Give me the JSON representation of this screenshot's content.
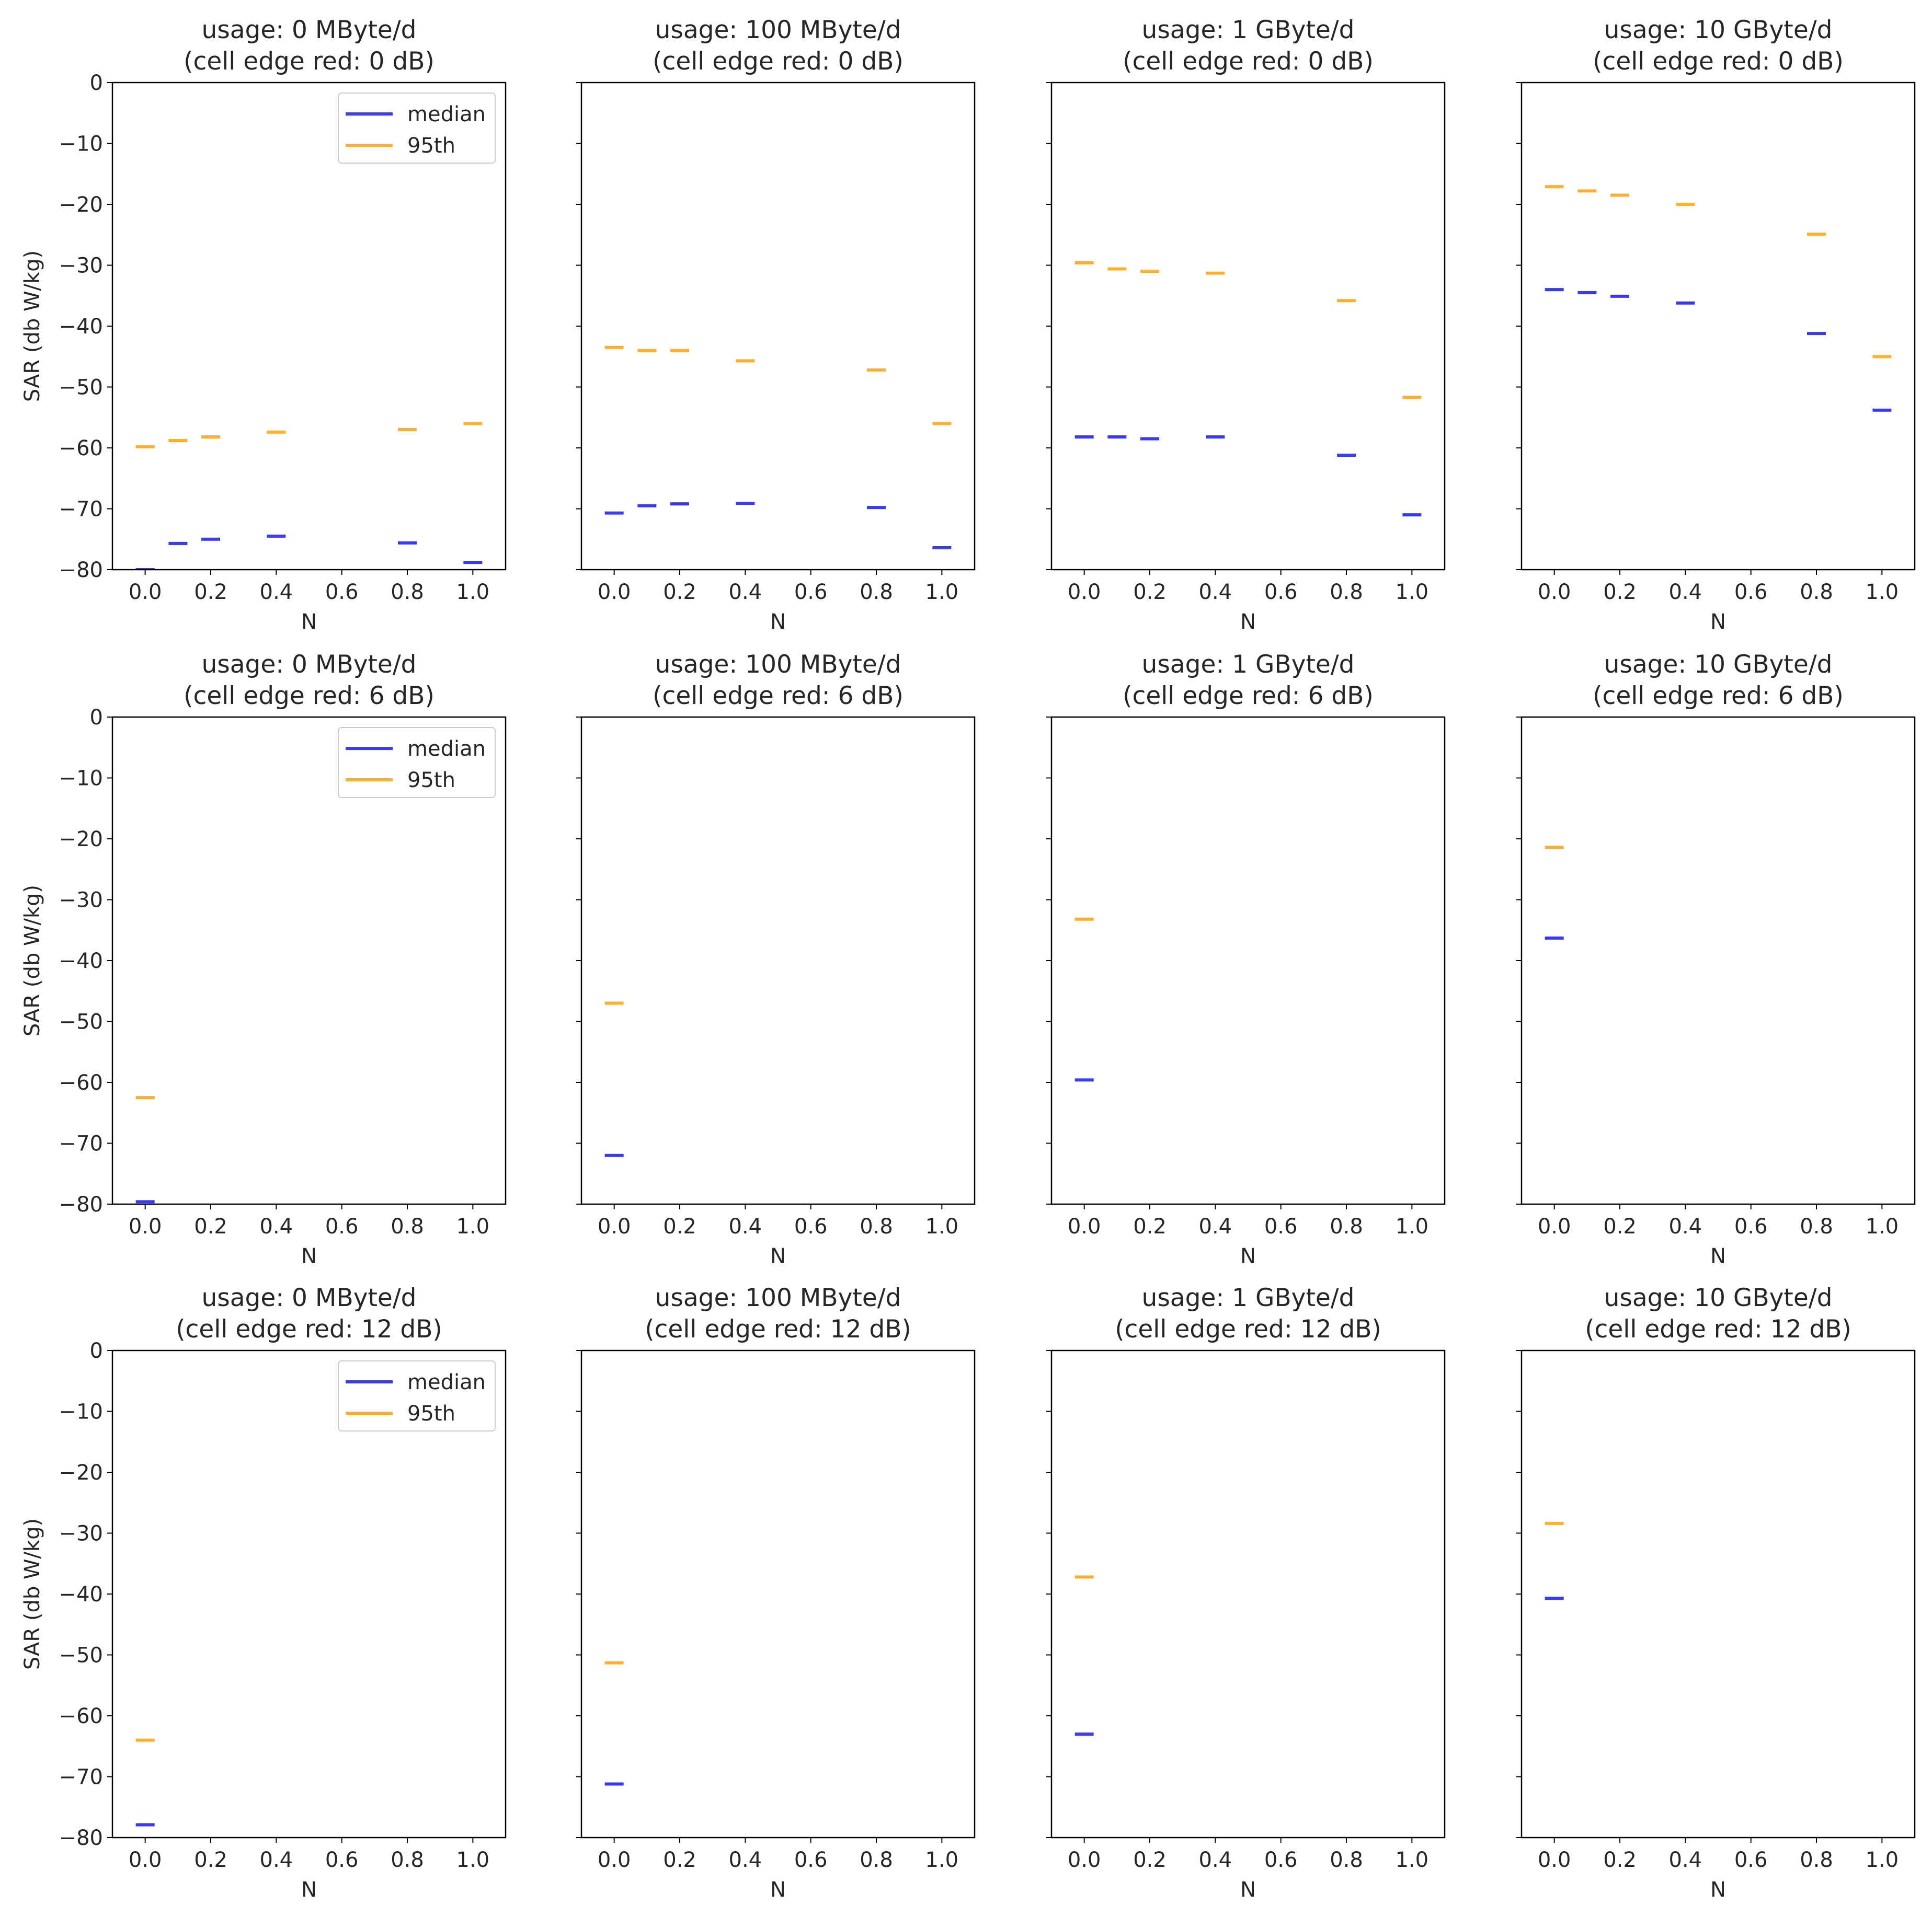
{
  "figure": {
    "background": "#ffffff"
  },
  "colors": {
    "median": "#3a3af5",
    "p95": "#ffb030",
    "axis": "#000000"
  },
  "chart_data": [
    {
      "type": "scatter",
      "title_line1": "usage: 0 MByte/d",
      "title_line2": "(cell edge red: 0 dB)",
      "xlabel": "N",
      "ylabel": "SAR (db W/kg)",
      "xlim": [
        -0.1,
        1.1
      ],
      "ylim": [
        -80,
        0
      ],
      "xticks": [
        "0.0",
        "0.2",
        "0.4",
        "0.6",
        "0.8",
        "1.0"
      ],
      "yticks": [
        "0",
        "−10",
        "−20",
        "−30",
        "−40",
        "−50",
        "−60",
        "−70",
        "−80"
      ],
      "legend": {
        "location": "upper right",
        "entries": [
          "median",
          "95th"
        ]
      },
      "series": [
        {
          "name": "median",
          "x": [
            0.0,
            0.1,
            0.2,
            0.4,
            0.8,
            1.0
          ],
          "y": [
            -80.0,
            -75.7,
            -75.0,
            -74.5,
            -75.6,
            -78.8
          ]
        },
        {
          "name": "95th",
          "x": [
            0.0,
            0.1,
            0.2,
            0.4,
            0.8,
            1.0
          ],
          "y": [
            -59.8,
            -58.8,
            -58.2,
            -57.4,
            -57.0,
            -56.0
          ]
        }
      ]
    },
    {
      "type": "scatter",
      "title_line1": "usage: 100 MByte/d",
      "title_line2": "(cell edge red: 0 dB)",
      "xlabel": "N",
      "ylabel": "",
      "xlim": [
        -0.1,
        1.1
      ],
      "ylim": [
        -80,
        0
      ],
      "xticks": [
        "0.0",
        "0.2",
        "0.4",
        "0.6",
        "0.8",
        "1.0"
      ],
      "yticks": [],
      "legend": null,
      "series": [
        {
          "name": "median",
          "x": [
            0.0,
            0.1,
            0.2,
            0.4,
            0.8,
            1.0
          ],
          "y": [
            -70.7,
            -69.5,
            -69.2,
            -69.1,
            -69.8,
            -76.4
          ]
        },
        {
          "name": "95th",
          "x": [
            0.0,
            0.1,
            0.2,
            0.4,
            0.8,
            1.0
          ],
          "y": [
            -43.5,
            -44.0,
            -44.0,
            -45.7,
            -47.2,
            -56.0
          ]
        }
      ]
    },
    {
      "type": "scatter",
      "title_line1": "usage: 1 GByte/d",
      "title_line2": "(cell edge red: 0 dB)",
      "xlabel": "N",
      "ylabel": "",
      "xlim": [
        -0.1,
        1.1
      ],
      "ylim": [
        -80,
        0
      ],
      "xticks": [
        "0.0",
        "0.2",
        "0.4",
        "0.6",
        "0.8",
        "1.0"
      ],
      "yticks": [],
      "legend": null,
      "series": [
        {
          "name": "median",
          "x": [
            0.0,
            0.1,
            0.2,
            0.4,
            0.8,
            1.0
          ],
          "y": [
            -58.2,
            -58.2,
            -58.5,
            -58.2,
            -61.2,
            -71.0
          ]
        },
        {
          "name": "95th",
          "x": [
            0.0,
            0.1,
            0.2,
            0.4,
            0.8,
            1.0
          ],
          "y": [
            -29.6,
            -30.6,
            -31.0,
            -31.3,
            -35.8,
            -51.7
          ]
        }
      ]
    },
    {
      "type": "scatter",
      "title_line1": "usage: 10 GByte/d",
      "title_line2": "(cell edge red: 0 dB)",
      "xlabel": "N",
      "ylabel": "",
      "xlim": [
        -0.1,
        1.1
      ],
      "ylim": [
        -80,
        0
      ],
      "xticks": [
        "0.0",
        "0.2",
        "0.4",
        "0.6",
        "0.8",
        "1.0"
      ],
      "yticks": [],
      "legend": null,
      "series": [
        {
          "name": "median",
          "x": [
            0.0,
            0.1,
            0.2,
            0.4,
            0.8,
            1.0
          ],
          "y": [
            -34.0,
            -34.5,
            -35.1,
            -36.2,
            -41.2,
            -53.8
          ]
        },
        {
          "name": "95th",
          "x": [
            0.0,
            0.1,
            0.2,
            0.4,
            0.8,
            1.0
          ],
          "y": [
            -17.1,
            -17.8,
            -18.5,
            -20.0,
            -24.9,
            -45.0
          ]
        }
      ]
    },
    {
      "type": "scatter",
      "title_line1": "usage: 0 MByte/d",
      "title_line2": "(cell edge red: 6 dB)",
      "xlabel": "N",
      "ylabel": "SAR (db W/kg)",
      "xlim": [
        -0.1,
        1.1
      ],
      "ylim": [
        -80,
        0
      ],
      "xticks": [
        "0.0",
        "0.2",
        "0.4",
        "0.6",
        "0.8",
        "1.0"
      ],
      "yticks": [
        "0",
        "−10",
        "−20",
        "−30",
        "−40",
        "−50",
        "−60",
        "−70",
        "−80"
      ],
      "legend": {
        "location": "upper right",
        "entries": [
          "median",
          "95th"
        ]
      },
      "series": [
        {
          "name": "median",
          "x": [
            0.0
          ],
          "y": [
            -79.6
          ]
        },
        {
          "name": "95th",
          "x": [
            0.0
          ],
          "y": [
            -62.5
          ]
        }
      ]
    },
    {
      "type": "scatter",
      "title_line1": "usage: 100 MByte/d",
      "title_line2": "(cell edge red: 6 dB)",
      "xlabel": "N",
      "ylabel": "",
      "xlim": [
        -0.1,
        1.1
      ],
      "ylim": [
        -80,
        0
      ],
      "xticks": [
        "0.0",
        "0.2",
        "0.4",
        "0.6",
        "0.8",
        "1.0"
      ],
      "yticks": [],
      "legend": null,
      "series": [
        {
          "name": "median",
          "x": [
            0.0
          ],
          "y": [
            -72.0
          ]
        },
        {
          "name": "95th",
          "x": [
            0.0
          ],
          "y": [
            -47.0
          ]
        }
      ]
    },
    {
      "type": "scatter",
      "title_line1": "usage: 1 GByte/d",
      "title_line2": "(cell edge red: 6 dB)",
      "xlabel": "N",
      "ylabel": "",
      "xlim": [
        -0.1,
        1.1
      ],
      "ylim": [
        -80,
        0
      ],
      "xticks": [
        "0.0",
        "0.2",
        "0.4",
        "0.6",
        "0.8",
        "1.0"
      ],
      "yticks": [],
      "legend": null,
      "series": [
        {
          "name": "median",
          "x": [
            0.0
          ],
          "y": [
            -59.6
          ]
        },
        {
          "name": "95th",
          "x": [
            0.0
          ],
          "y": [
            -33.2
          ]
        }
      ]
    },
    {
      "type": "scatter",
      "title_line1": "usage: 10 GByte/d",
      "title_line2": "(cell edge red: 6 dB)",
      "xlabel": "N",
      "ylabel": "",
      "xlim": [
        -0.1,
        1.1
      ],
      "ylim": [
        -80,
        0
      ],
      "xticks": [
        "0.0",
        "0.2",
        "0.4",
        "0.6",
        "0.8",
        "1.0"
      ],
      "yticks": [],
      "legend": null,
      "series": [
        {
          "name": "median",
          "x": [
            0.0
          ],
          "y": [
            -36.3
          ]
        },
        {
          "name": "95th",
          "x": [
            0.0
          ],
          "y": [
            -21.4
          ]
        }
      ]
    },
    {
      "type": "scatter",
      "title_line1": "usage: 0 MByte/d",
      "title_line2": "(cell edge red: 12 dB)",
      "xlabel": "N",
      "ylabel": "SAR (db W/kg)",
      "xlim": [
        -0.1,
        1.1
      ],
      "ylim": [
        -80,
        0
      ],
      "xticks": [
        "0.0",
        "0.2",
        "0.4",
        "0.6",
        "0.8",
        "1.0"
      ],
      "yticks": [
        "0",
        "−10",
        "−20",
        "−30",
        "−40",
        "−50",
        "−60",
        "−70",
        "−80"
      ],
      "legend": {
        "location": "upper right",
        "entries": [
          "median",
          "95th"
        ]
      },
      "series": [
        {
          "name": "median",
          "x": [
            0.0
          ],
          "y": [
            -77.9
          ]
        },
        {
          "name": "95th",
          "x": [
            0.0
          ],
          "y": [
            -64.0
          ]
        }
      ]
    },
    {
      "type": "scatter",
      "title_line1": "usage: 100 MByte/d",
      "title_line2": "(cell edge red: 12 dB)",
      "xlabel": "N",
      "ylabel": "",
      "xlim": [
        -0.1,
        1.1
      ],
      "ylim": [
        -80,
        0
      ],
      "xticks": [
        "0.0",
        "0.2",
        "0.4",
        "0.6",
        "0.8",
        "1.0"
      ],
      "yticks": [],
      "legend": null,
      "series": [
        {
          "name": "median",
          "x": [
            0.0
          ],
          "y": [
            -71.2
          ]
        },
        {
          "name": "95th",
          "x": [
            0.0
          ],
          "y": [
            -51.3
          ]
        }
      ]
    },
    {
      "type": "scatter",
      "title_line1": "usage: 1 GByte/d",
      "title_line2": "(cell edge red: 12 dB)",
      "xlabel": "N",
      "ylabel": "",
      "xlim": [
        -0.1,
        1.1
      ],
      "ylim": [
        -80,
        0
      ],
      "xticks": [
        "0.0",
        "0.2",
        "0.4",
        "0.6",
        "0.8",
        "1.0"
      ],
      "yticks": [],
      "legend": null,
      "series": [
        {
          "name": "median",
          "x": [
            0.0
          ],
          "y": [
            -63.0
          ]
        },
        {
          "name": "95th",
          "x": [
            0.0
          ],
          "y": [
            -37.2
          ]
        }
      ]
    },
    {
      "type": "scatter",
      "title_line1": "usage: 10 GByte/d",
      "title_line2": "(cell edge red: 12 dB)",
      "xlabel": "N",
      "ylabel": "",
      "xlim": [
        -0.1,
        1.1
      ],
      "ylim": [
        -80,
        0
      ],
      "xticks": [
        "0.0",
        "0.2",
        "0.4",
        "0.6",
        "0.8",
        "1.0"
      ],
      "yticks": [],
      "legend": null,
      "series": [
        {
          "name": "median",
          "x": [
            0.0
          ],
          "y": [
            -40.7
          ]
        },
        {
          "name": "95th",
          "x": [
            0.0
          ],
          "y": [
            -28.4
          ]
        }
      ]
    }
  ]
}
